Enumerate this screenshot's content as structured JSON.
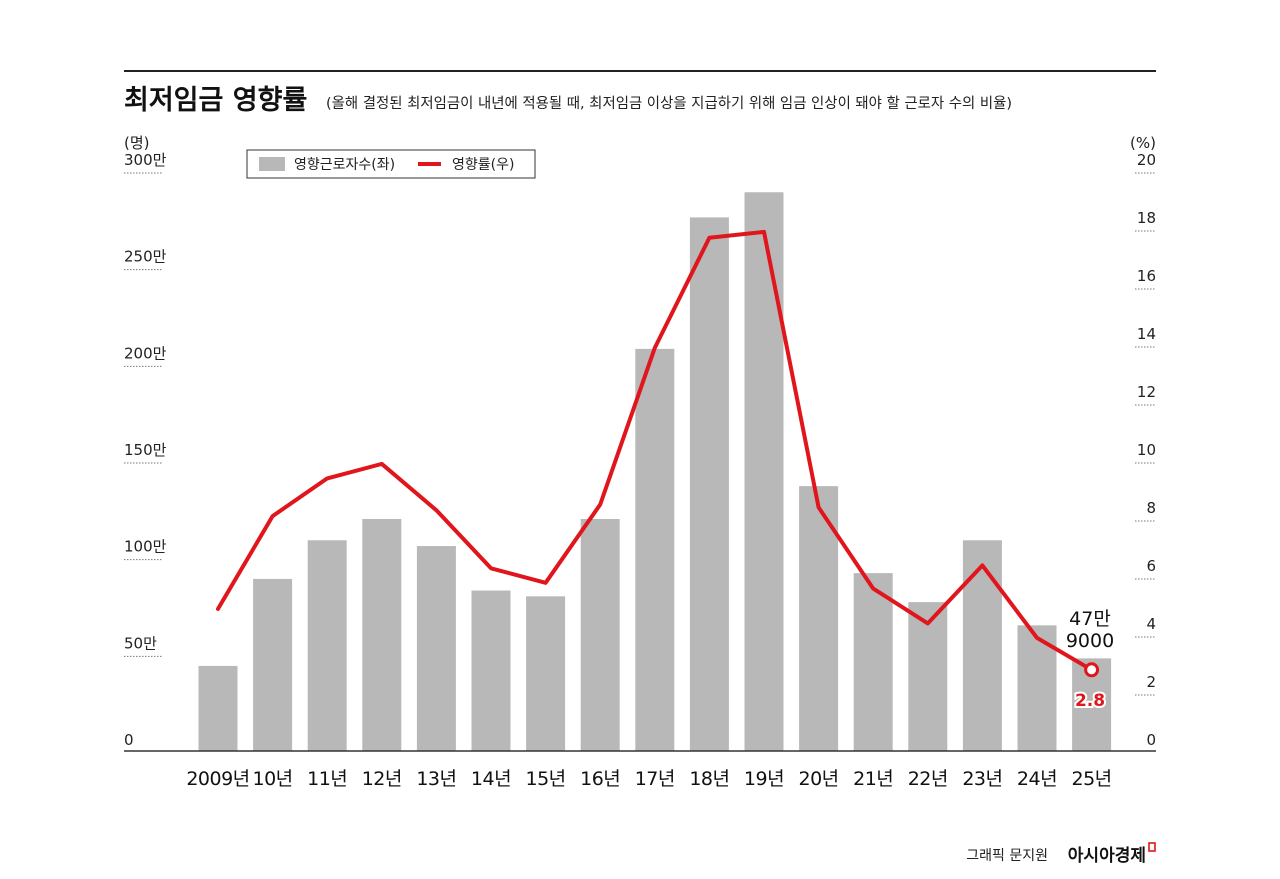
{
  "header": {
    "title": "최저임금 영향률",
    "subtitle": "(올해 결정된 최저임금이 내년에 적용될 때, 최저임금 이상을 지급하기 위해 임금 인상이 돼야 할 근로자 수의 비율)"
  },
  "footer": {
    "credit": "그래픽 문지원",
    "brand": "아시아경제"
  },
  "colors": {
    "bar": "#b8b8b8",
    "line": "#e0161c",
    "axis": "#333333",
    "text": "#1a1a1a"
  },
  "chart_data": {
    "type": "bar+line",
    "title": "최저임금 영향률",
    "subtitle": "(올해 결정된 최저임금이 내년에 적용될 때, 최저임금 이상을 지급하기 위해 임금 인상이 돼야 할 근로자 수의 비율)",
    "categories": [
      "2009년",
      "10년",
      "11년",
      "12년",
      "13년",
      "14년",
      "15년",
      "16년",
      "17년",
      "18년",
      "19년",
      "20년",
      "21년",
      "22년",
      "23년",
      "24년",
      "25년"
    ],
    "left_axis": {
      "unit": "(명)",
      "ticks": [
        "0",
        "50만",
        "100만",
        "150만",
        "200만",
        "250만",
        "300만"
      ],
      "range": [
        0,
        3000000
      ]
    },
    "right_axis": {
      "unit": "(%)",
      "ticks": [
        "0",
        "2",
        "4",
        "6",
        "8",
        "10",
        "12",
        "14",
        "16",
        "18",
        "20"
      ],
      "range": [
        0,
        20
      ]
    },
    "legend": {
      "placement": "top-left",
      "items": [
        {
          "label": "영향근로자수(좌)",
          "kind": "bar"
        },
        {
          "label": "영향률(우)",
          "kind": "line"
        }
      ]
    },
    "series": [
      {
        "name": "영향근로자수(좌)",
        "type": "bar",
        "axis": "left",
        "values": [
          440000,
          890000,
          1090000,
          1200000,
          1060000,
          830000,
          800000,
          1200000,
          2080000,
          2760000,
          2890000,
          1370000,
          920000,
          770000,
          1090000,
          650000,
          479000
        ]
      },
      {
        "name": "영향률(우)",
        "type": "line",
        "axis": "right",
        "values": [
          4.9,
          8.1,
          9.4,
          9.9,
          8.3,
          6.3,
          5.8,
          8.5,
          13.9,
          17.7,
          17.9,
          8.4,
          5.6,
          4.4,
          6.4,
          3.9,
          2.8
        ]
      }
    ],
    "annotations": {
      "last_bar_line1": "47만",
      "last_bar_line2": "9000",
      "last_rate": "2.8"
    },
    "grid": false
  }
}
